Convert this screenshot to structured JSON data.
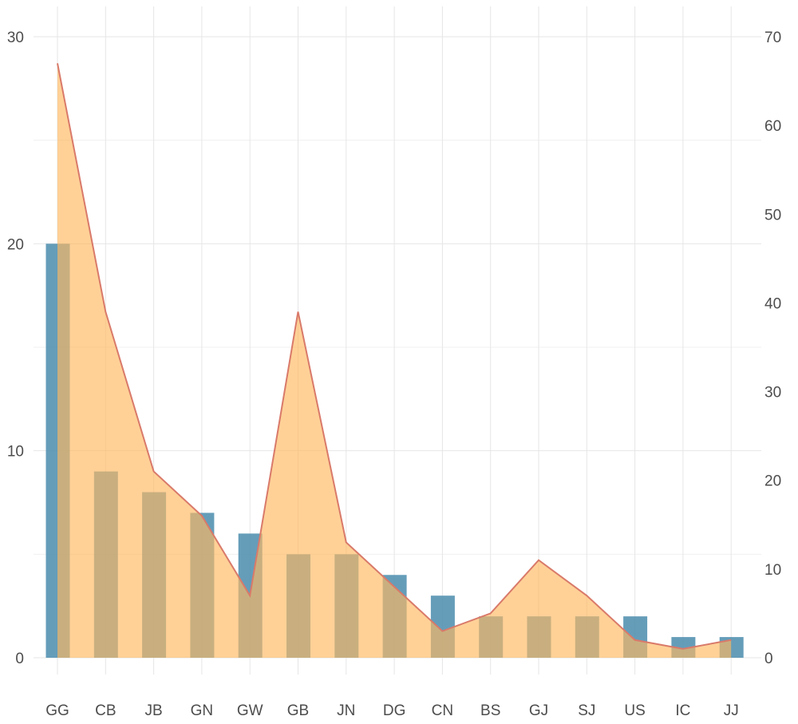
{
  "chart_data": {
    "type": "bar",
    "categories": [
      "GG",
      "CB",
      "JB",
      "GN",
      "GW",
      "GB",
      "JN",
      "DG",
      "CN",
      "BS",
      "GJ",
      "SJ",
      "US",
      "IC",
      "JJ"
    ],
    "series": [
      {
        "type": "bar",
        "axis": "left",
        "values": [
          20,
          9,
          8,
          7,
          6,
          5,
          5,
          4,
          3,
          2,
          2,
          2,
          2,
          1,
          1
        ],
        "color": "#4a8cad"
      },
      {
        "type": "area",
        "axis": "right",
        "values": [
          67,
          39,
          21,
          16,
          7,
          39,
          13,
          8,
          3,
          5,
          11,
          7,
          2,
          1,
          2
        ],
        "fill": "#ffb960",
        "line_color": "#d97a6a"
      }
    ],
    "y_left": {
      "ylim": [
        0,
        30
      ],
      "ticks": [
        0,
        10,
        20,
        30
      ]
    },
    "y_right": {
      "ylim": [
        0,
        70
      ],
      "ticks": [
        0,
        10,
        20,
        30,
        40,
        50,
        60,
        70
      ]
    },
    "grid": true,
    "xlabel": "",
    "ylabel": ""
  }
}
